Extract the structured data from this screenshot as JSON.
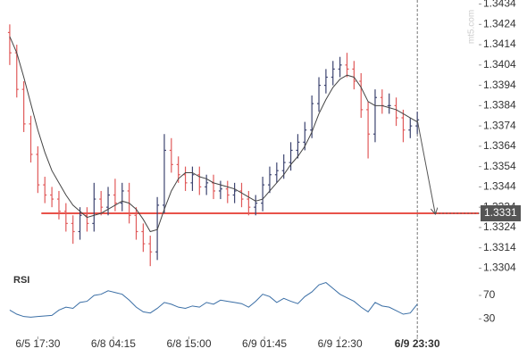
{
  "chart_data": {
    "type": "ohlc",
    "watermark": "mt5.com",
    "up_color": "#3d4470",
    "down_color": "#e05a5a",
    "xlim": [
      -9.5,
      125.5
    ],
    "xticks": [
      {
        "value": 0,
        "label": "6/5 17:30"
      },
      {
        "value": 21.5,
        "label": "6/8 04:15"
      },
      {
        "value": 43,
        "label": "6/8 15:00"
      },
      {
        "value": 64.5,
        "label": "6/9 01:45"
      },
      {
        "value": 86,
        "label": "6/9 12:30"
      },
      {
        "value": 108,
        "label": "6/9 23:30"
      }
    ],
    "ylim": [
      1.3302,
      1.3436
    ],
    "yticks": [
      1.3434,
      1.3424,
      1.3414,
      1.3404,
      1.3394,
      1.3384,
      1.3374,
      1.3364,
      1.3354,
      1.3344,
      1.3334,
      1.3324,
      1.3314,
      1.3304
    ],
    "x": [
      -8,
      -6,
      -4,
      -2,
      0,
      2,
      4,
      6,
      8,
      10,
      12,
      14,
      16,
      18,
      20,
      22,
      24,
      26,
      28,
      30,
      32,
      34,
      36,
      38,
      40,
      42,
      44,
      46,
      48,
      50,
      52,
      54,
      56,
      58,
      60,
      62,
      64,
      66,
      68,
      70,
      72,
      74,
      76,
      78,
      80,
      82,
      84,
      86,
      88,
      90,
      92,
      94,
      96,
      98,
      100,
      102,
      104,
      106,
      108
    ],
    "open": [
      1.342,
      1.341,
      1.3392,
      1.3375,
      1.336,
      1.3345,
      1.334,
      1.3338,
      1.3332,
      1.3326,
      1.3322,
      1.333,
      1.3326,
      1.3338,
      1.3334,
      1.334,
      1.3336,
      1.3342,
      1.333,
      1.3322,
      1.3316,
      1.3312,
      1.3335,
      1.3362,
      1.3355,
      1.335,
      1.3346,
      1.335,
      1.3344,
      1.3346,
      1.3342,
      1.3343,
      1.334,
      1.3342,
      1.3338,
      1.3334,
      1.3336,
      1.3345,
      1.335,
      1.3352,
      1.3356,
      1.3362,
      1.3366,
      1.3372,
      1.3385,
      1.3394,
      1.3398,
      1.3402,
      1.3404,
      1.3402,
      1.3396,
      1.3382,
      1.337,
      1.3388,
      1.3384,
      1.3384,
      1.3378,
      1.3372,
      1.3374
    ],
    "high": [
      1.3424,
      1.3414,
      1.3396,
      1.3379,
      1.3364,
      1.3349,
      1.3344,
      1.3342,
      1.3336,
      1.333,
      1.3334,
      1.3334,
      1.3346,
      1.3342,
      1.3344,
      1.3348,
      1.3346,
      1.3346,
      1.3334,
      1.3326,
      1.332,
      1.3339,
      1.337,
      1.3368,
      1.3359,
      1.3354,
      1.3354,
      1.3354,
      1.335,
      1.335,
      1.3347,
      1.3347,
      1.3346,
      1.3346,
      1.3342,
      1.334,
      1.3349,
      1.3354,
      1.3356,
      1.336,
      1.3366,
      1.337,
      1.3376,
      1.3389,
      1.3398,
      1.3402,
      1.3406,
      1.3408,
      1.341,
      1.3406,
      1.34,
      1.3386,
      1.3392,
      1.3392,
      1.339,
      1.3388,
      1.3382,
      1.3378,
      1.3381
    ],
    "low": [
      1.3404,
      1.3388,
      1.3371,
      1.3356,
      1.3341,
      1.3336,
      1.3334,
      1.3328,
      1.3322,
      1.3316,
      1.3318,
      1.3322,
      1.3322,
      1.333,
      1.333,
      1.3332,
      1.3332,
      1.3326,
      1.3318,
      1.3312,
      1.3305,
      1.3308,
      1.3331,
      1.3351,
      1.3346,
      1.3342,
      1.3342,
      1.334,
      1.334,
      1.3338,
      1.3338,
      1.3336,
      1.3336,
      1.3334,
      1.333,
      1.333,
      1.3332,
      1.3341,
      1.3346,
      1.3348,
      1.3352,
      1.3358,
      1.3362,
      1.3368,
      1.3381,
      1.339,
      1.3394,
      1.3398,
      1.3398,
      1.3392,
      1.3378,
      1.3358,
      1.3366,
      1.338,
      1.338,
      1.3374,
      1.3366,
      1.3368,
      1.337
    ],
    "close": [
      1.341,
      1.3392,
      1.3375,
      1.336,
      1.3345,
      1.334,
      1.3338,
      1.3332,
      1.3326,
      1.3322,
      1.333,
      1.3326,
      1.3338,
      1.3334,
      1.334,
      1.3336,
      1.3342,
      1.333,
      1.3322,
      1.3316,
      1.3312,
      1.3335,
      1.3362,
      1.3355,
      1.335,
      1.3346,
      1.335,
      1.3344,
      1.3346,
      1.3342,
      1.3343,
      1.334,
      1.3342,
      1.3338,
      1.3334,
      1.3336,
      1.3345,
      1.335,
      1.3352,
      1.3356,
      1.3362,
      1.3366,
      1.3372,
      1.3385,
      1.3394,
      1.3398,
      1.3402,
      1.3404,
      1.3402,
      1.3396,
      1.3382,
      1.337,
      1.3388,
      1.3384,
      1.3384,
      1.3378,
      1.3372,
      1.3374,
      1.3377
    ],
    "ma": {
      "color": "#444444",
      "values": [
        1.3418,
        1.341,
        1.3398,
        1.3385,
        1.3372,
        1.3361,
        1.3352,
        1.3346,
        1.334,
        1.3335,
        1.3332,
        1.3329,
        1.333,
        1.3331,
        1.3333,
        1.3335,
        1.3337,
        1.3336,
        1.3333,
        1.3328,
        1.3322,
        1.3323,
        1.3333,
        1.3342,
        1.3348,
        1.3351,
        1.3351,
        1.3349,
        1.3348,
        1.3346,
        1.3345,
        1.3344,
        1.3343,
        1.3341,
        1.3339,
        1.3337,
        1.3338,
        1.3342,
        1.3346,
        1.335,
        1.3355,
        1.3359,
        1.3364,
        1.3371,
        1.338,
        1.3387,
        1.3393,
        1.3397,
        1.3399,
        1.3398,
        1.3393,
        1.3386,
        1.3384,
        1.3384,
        1.3383,
        1.3382,
        1.338,
        1.3378,
        1.3376
      ]
    },
    "level": {
      "value": 1.3331,
      "color": "#e8524a"
    },
    "rsi": {
      "label": "RSI",
      "color": "#3a6ea5",
      "ylim": [
        0,
        100
      ],
      "yticks": [
        70,
        30
      ],
      "values": [
        45,
        38,
        34,
        33,
        34,
        35,
        36,
        45,
        50,
        48,
        58,
        60,
        70,
        72,
        78,
        75,
        72,
        62,
        50,
        42,
        40,
        48,
        58,
        55,
        50,
        48,
        52,
        50,
        58,
        55,
        62,
        60,
        58,
        56,
        50,
        60,
        72,
        68,
        58,
        65,
        60,
        56,
        68,
        76,
        88,
        92,
        82,
        72,
        66,
        60,
        50,
        42,
        58,
        52,
        50,
        44,
        38,
        40,
        55
      ]
    }
  }
}
